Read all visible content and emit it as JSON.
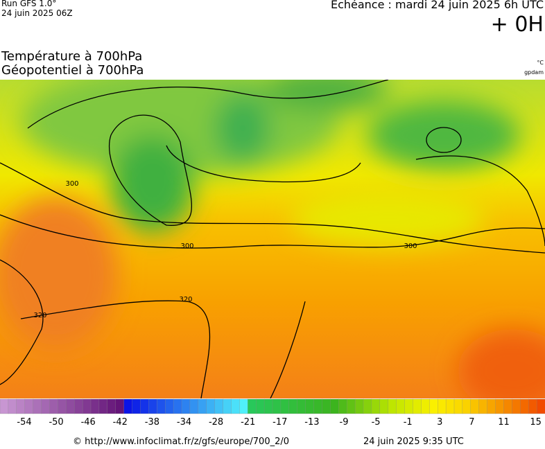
{
  "header": {
    "run": "Run GFS 1.0°",
    "run_date": "24 juin 2025 06Z",
    "forecast": "Echéance : mardi 24 juin 2025 6h UTC",
    "lead": "+ 0H",
    "title_1": "Température à 700hPa",
    "title_2": "Géopotentiel à 700hPa",
    "unit_1": "°C",
    "unit_2": "gpdam"
  },
  "map": {
    "contour_labels": [
      "300",
      "300",
      "300",
      "320",
      "320"
    ]
  },
  "colorbar": {
    "labels": [
      "-54",
      "-50",
      "-46",
      "-42",
      "-38",
      "-34",
      "-28",
      "-21",
      "-17",
      "-13",
      "-9",
      "-5",
      "-1",
      "3",
      "7",
      "11",
      "15"
    ]
  },
  "footer": {
    "source": "© http://www.infoclimat.fr/z/gfs/europe/700_2/0",
    "generated": "24 juin 2025  9:35 UTC"
  }
}
